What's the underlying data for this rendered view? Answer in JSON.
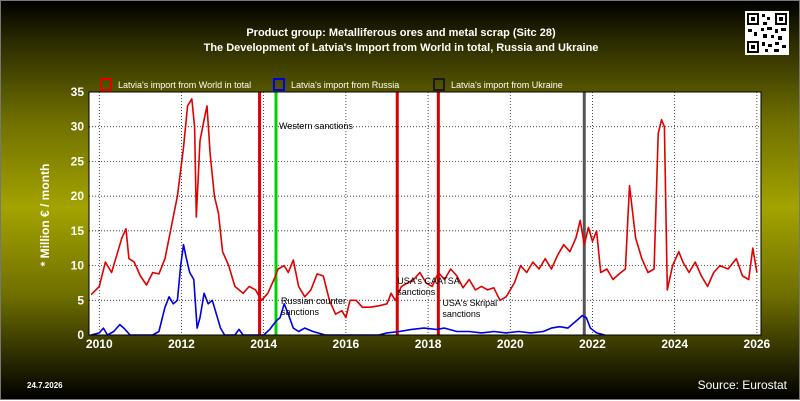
{
  "title_line1": "Product group: Metalliferous ores and metal scrap (Sitc 28)",
  "title_line2": "The Development of Latvia's Import from World in total, Russia and Ukraine",
  "footer_date": "24.7.2026",
  "source": "Source: Eurostat",
  "chart_data": {
    "type": "line",
    "ylabel": "* Million € / month",
    "xlabel": "",
    "xlim": [
      2009.75,
      2026.1
    ],
    "ylim": [
      0,
      35
    ],
    "x_ticks": [
      2010,
      2012,
      2014,
      2016,
      2018,
      2020,
      2022,
      2024,
      2026
    ],
    "y_ticks": [
      0,
      5,
      10,
      15,
      20,
      25,
      30,
      35
    ],
    "grid": true,
    "legend_position": "top",
    "series": [
      {
        "name": "Latvia's import from World in total",
        "color": "#e00000",
        "points": [
          [
            2009.8,
            5.8
          ],
          [
            2010.0,
            7.0
          ],
          [
            2010.15,
            10.5
          ],
          [
            2010.3,
            9.0
          ],
          [
            2010.45,
            12.0
          ],
          [
            2010.55,
            14.0
          ],
          [
            2010.65,
            15.3
          ],
          [
            2010.72,
            11.0
          ],
          [
            2010.85,
            10.5
          ],
          [
            2011.0,
            8.5
          ],
          [
            2011.15,
            7.2
          ],
          [
            2011.3,
            9.0
          ],
          [
            2011.45,
            8.8
          ],
          [
            2011.6,
            11.0
          ],
          [
            2011.75,
            15.5
          ],
          [
            2011.9,
            20.0
          ],
          [
            2012.05,
            27.0
          ],
          [
            2012.15,
            33.0
          ],
          [
            2012.25,
            34.0
          ],
          [
            2012.32,
            30.0
          ],
          [
            2012.36,
            17.0
          ],
          [
            2012.45,
            28.0
          ],
          [
            2012.55,
            31.0
          ],
          [
            2012.62,
            33.0
          ],
          [
            2012.7,
            26.0
          ],
          [
            2012.8,
            20.0
          ],
          [
            2012.9,
            17.5
          ],
          [
            2013.0,
            12.0
          ],
          [
            2013.15,
            10.0
          ],
          [
            2013.3,
            7.0
          ],
          [
            2013.5,
            6.0
          ],
          [
            2013.65,
            7.0
          ],
          [
            2013.8,
            6.5
          ],
          [
            2013.95,
            5.0
          ],
          [
            2014.1,
            6.0
          ],
          [
            2014.25,
            8.0
          ],
          [
            2014.35,
            9.5
          ],
          [
            2014.5,
            10.0
          ],
          [
            2014.6,
            9.0
          ],
          [
            2014.72,
            10.8
          ],
          [
            2014.85,
            7.0
          ],
          [
            2015.0,
            5.5
          ],
          [
            2015.15,
            6.5
          ],
          [
            2015.3,
            8.8
          ],
          [
            2015.45,
            8.5
          ],
          [
            2015.6,
            5.0
          ],
          [
            2015.75,
            3.0
          ],
          [
            2015.9,
            3.5
          ],
          [
            2016.0,
            2.5
          ],
          [
            2016.1,
            5.0
          ],
          [
            2016.25,
            5.0
          ],
          [
            2016.4,
            4.0
          ],
          [
            2016.6,
            4.0
          ],
          [
            2016.8,
            4.2
          ],
          [
            2017.0,
            4.5
          ],
          [
            2017.1,
            6.0
          ],
          [
            2017.2,
            5.0
          ],
          [
            2017.35,
            7.0
          ],
          [
            2017.5,
            7.5
          ],
          [
            2017.65,
            8.0
          ],
          [
            2017.8,
            9.0
          ],
          [
            2017.95,
            7.5
          ],
          [
            2018.1,
            7.0
          ],
          [
            2018.25,
            9.0
          ],
          [
            2018.4,
            8.0
          ],
          [
            2018.55,
            9.5
          ],
          [
            2018.7,
            8.5
          ],
          [
            2018.85,
            6.8
          ],
          [
            2019.0,
            8.0
          ],
          [
            2019.15,
            6.5
          ],
          [
            2019.3,
            7.0
          ],
          [
            2019.45,
            6.5
          ],
          [
            2019.6,
            6.8
          ],
          [
            2019.75,
            5.0
          ],
          [
            2019.9,
            5.5
          ],
          [
            2020.1,
            7.5
          ],
          [
            2020.25,
            10.0
          ],
          [
            2020.4,
            9.0
          ],
          [
            2020.55,
            10.5
          ],
          [
            2020.7,
            9.5
          ],
          [
            2020.85,
            11.0
          ],
          [
            2021.0,
            9.5
          ],
          [
            2021.15,
            11.5
          ],
          [
            2021.3,
            13.0
          ],
          [
            2021.45,
            12.0
          ],
          [
            2021.6,
            14.0
          ],
          [
            2021.7,
            16.5
          ],
          [
            2021.8,
            13.0
          ],
          [
            2021.9,
            15.5
          ],
          [
            2022.0,
            13.5
          ],
          [
            2022.1,
            15.0
          ],
          [
            2022.2,
            9.0
          ],
          [
            2022.35,
            9.5
          ],
          [
            2022.5,
            8.0
          ],
          [
            2022.65,
            8.8
          ],
          [
            2022.8,
            9.5
          ],
          [
            2022.9,
            21.5
          ],
          [
            2023.05,
            14.0
          ],
          [
            2023.2,
            11.0
          ],
          [
            2023.35,
            9.0
          ],
          [
            2023.5,
            9.5
          ],
          [
            2023.6,
            29.0
          ],
          [
            2023.68,
            31.0
          ],
          [
            2023.75,
            30.0
          ],
          [
            2023.82,
            6.5
          ],
          [
            2023.95,
            10.0
          ],
          [
            2024.1,
            12.0
          ],
          [
            2024.2,
            10.5
          ],
          [
            2024.35,
            9.0
          ],
          [
            2024.5,
            10.5
          ],
          [
            2024.65,
            8.5
          ],
          [
            2024.8,
            7.0
          ],
          [
            2024.95,
            9.0
          ],
          [
            2025.1,
            10.0
          ],
          [
            2025.3,
            9.5
          ],
          [
            2025.5,
            11.0
          ],
          [
            2025.65,
            8.5
          ],
          [
            2025.8,
            8.0
          ],
          [
            2025.9,
            12.5
          ],
          [
            2026.0,
            9.0
          ]
        ]
      },
      {
        "name": "Latvia's import from Russia",
        "color": "#0000e0",
        "points": [
          [
            2009.8,
            0.0
          ],
          [
            2010.0,
            0.3
          ],
          [
            2010.1,
            1.0
          ],
          [
            2010.2,
            0.0
          ],
          [
            2010.35,
            0.5
          ],
          [
            2010.5,
            1.5
          ],
          [
            2010.6,
            1.0
          ],
          [
            2010.75,
            0.0
          ],
          [
            2011.0,
            0.0
          ],
          [
            2011.3,
            0.0
          ],
          [
            2011.45,
            0.5
          ],
          [
            2011.6,
            4.0
          ],
          [
            2011.7,
            5.5
          ],
          [
            2011.8,
            4.5
          ],
          [
            2011.9,
            5.0
          ],
          [
            2011.98,
            10.0
          ],
          [
            2012.05,
            13.0
          ],
          [
            2012.12,
            11.0
          ],
          [
            2012.2,
            9.0
          ],
          [
            2012.3,
            8.0
          ],
          [
            2012.38,
            1.0
          ],
          [
            2012.45,
            2.5
          ],
          [
            2012.55,
            6.0
          ],
          [
            2012.65,
            4.5
          ],
          [
            2012.75,
            5.0
          ],
          [
            2012.85,
            3.0
          ],
          [
            2012.95,
            1.0
          ],
          [
            2013.05,
            0.0
          ],
          [
            2013.2,
            0.0
          ],
          [
            2013.3,
            0.0
          ],
          [
            2013.4,
            0.8
          ],
          [
            2013.5,
            0.0
          ],
          [
            2014.0,
            0.0
          ],
          [
            2014.15,
            0.8
          ],
          [
            2014.3,
            2.0
          ],
          [
            2014.4,
            2.5
          ],
          [
            2014.5,
            4.5
          ],
          [
            2014.6,
            3.0
          ],
          [
            2014.72,
            1.0
          ],
          [
            2014.85,
            0.5
          ],
          [
            2015.0,
            1.0
          ],
          [
            2015.2,
            0.5
          ],
          [
            2015.5,
            0.0
          ],
          [
            2016.0,
            0.0
          ],
          [
            2016.5,
            0.0
          ],
          [
            2016.8,
            0.0
          ],
          [
            2017.0,
            0.3
          ],
          [
            2017.3,
            0.5
          ],
          [
            2017.6,
            0.8
          ],
          [
            2017.9,
            1.0
          ],
          [
            2018.2,
            0.8
          ],
          [
            2018.4,
            1.0
          ],
          [
            2018.7,
            0.5
          ],
          [
            2019.0,
            0.5
          ],
          [
            2019.3,
            0.3
          ],
          [
            2019.6,
            0.5
          ],
          [
            2019.9,
            0.3
          ],
          [
            2020.2,
            0.5
          ],
          [
            2020.5,
            0.3
          ],
          [
            2020.8,
            0.5
          ],
          [
            2021.0,
            1.0
          ],
          [
            2021.2,
            1.2
          ],
          [
            2021.4,
            1.0
          ],
          [
            2021.6,
            2.0
          ],
          [
            2021.75,
            2.8
          ],
          [
            2021.85,
            2.5
          ],
          [
            2021.95,
            1.0
          ],
          [
            2022.1,
            0.3
          ],
          [
            2022.3,
            0.0
          ]
        ]
      },
      {
        "name": "Latvia's import from Ukraine",
        "color": "#1a1a1a",
        "points": []
      }
    ],
    "events": [
      {
        "x": 2013.9,
        "color": "#dd0000",
        "label": ""
      },
      {
        "x": 2014.3,
        "color": "#00d000",
        "label": "Western sanctions"
      },
      {
        "x": 2014.3,
        "color": "#00d000",
        "label": "Russian counter sanctions"
      },
      {
        "x": 2017.25,
        "color": "#dd0000",
        "label": "USA's CAATSA sanctions"
      },
      {
        "x": 2018.25,
        "color": "#dd0000",
        "label": "USA's Skripal sanctions"
      },
      {
        "x": 2021.8,
        "color": "#555555",
        "label": ""
      }
    ]
  }
}
